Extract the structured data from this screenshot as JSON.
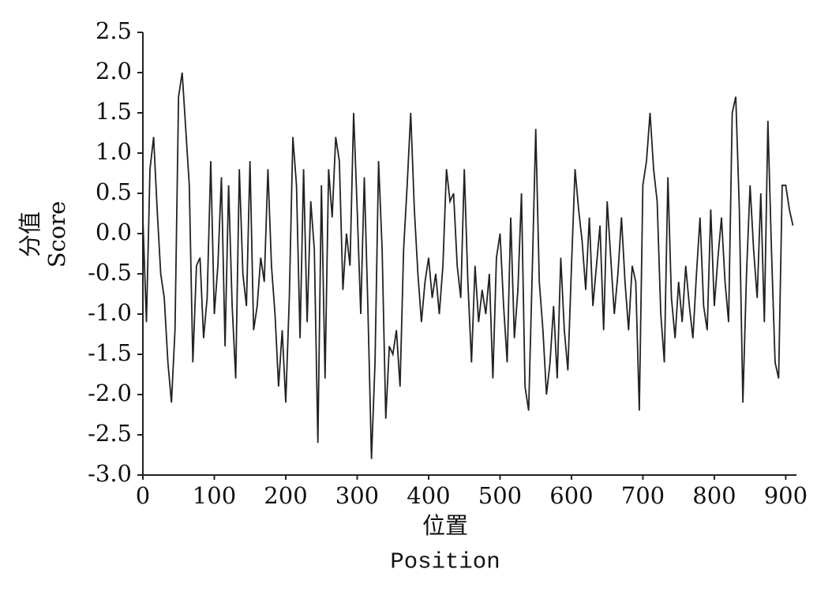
{
  "chart_data": {
    "type": "line",
    "y_label": [
      "分值",
      "Score"
    ],
    "x_label": [
      "位置",
      "Position"
    ],
    "xlim": [
      0,
      915
    ],
    "xticks": [
      0,
      100,
      200,
      300,
      400,
      500,
      600,
      700,
      800,
      900
    ],
    "ylim": [
      -3,
      2.5
    ],
    "yticks": [
      {
        "value": -3,
        "label": "-3.0"
      },
      -2.5,
      {
        "value": -2,
        "label": "-2.0"
      },
      -1.5,
      {
        "value": -1,
        "label": "-1.0"
      },
      -0.5,
      {
        "value": 0,
        "label": "0.0"
      },
      0.5,
      {
        "value": 1,
        "label": "1.0"
      },
      1.5,
      {
        "value": 2,
        "label": "2.0"
      },
      2.5
    ],
    "series": [
      {
        "name": "Score",
        "color": "#222222",
        "x": [
          0,
          5,
          10,
          15,
          20,
          25,
          30,
          35,
          40,
          45,
          50,
          55,
          60,
          65,
          70,
          75,
          80,
          85,
          90,
          95,
          100,
          105,
          110,
          115,
          120,
          125,
          130,
          135,
          140,
          145,
          150,
          155,
          160,
          165,
          170,
          175,
          180,
          185,
          190,
          195,
          200,
          205,
          210,
          215,
          220,
          225,
          230,
          235,
          240,
          245,
          250,
          255,
          260,
          265,
          270,
          275,
          280,
          285,
          290,
          295,
          300,
          305,
          310,
          315,
          320,
          325,
          330,
          335,
          340,
          345,
          350,
          355,
          360,
          365,
          370,
          375,
          380,
          385,
          390,
          395,
          400,
          405,
          410,
          415,
          420,
          425,
          430,
          435,
          440,
          445,
          450,
          455,
          460,
          465,
          470,
          475,
          480,
          485,
          490,
          495,
          500,
          505,
          510,
          515,
          520,
          525,
          530,
          535,
          540,
          545,
          550,
          555,
          560,
          565,
          570,
          575,
          580,
          585,
          590,
          595,
          600,
          605,
          610,
          615,
          620,
          625,
          630,
          635,
          640,
          645,
          650,
          655,
          660,
          665,
          670,
          675,
          680,
          685,
          690,
          695,
          700,
          705,
          710,
          715,
          720,
          725,
          730,
          735,
          740,
          745,
          750,
          755,
          760,
          765,
          770,
          775,
          780,
          785,
          790,
          795,
          800,
          805,
          810,
          815,
          820,
          825,
          830,
          835,
          840,
          845,
          850,
          855,
          860,
          865,
          870,
          875,
          880,
          885,
          890,
          895,
          900,
          905,
          910
        ],
        "values": [
          0.2,
          -1.1,
          0.8,
          1.2,
          0.3,
          -0.5,
          -0.8,
          -1.6,
          -2.1,
          -1.2,
          1.7,
          2.0,
          1.3,
          0.6,
          -1.6,
          -0.4,
          -0.3,
          -1.3,
          -0.8,
          0.9,
          -1.0,
          -0.4,
          0.7,
          -1.4,
          0.6,
          -0.9,
          -1.8,
          0.8,
          -0.5,
          -0.9,
          0.9,
          -1.2,
          -0.9,
          -0.3,
          -0.6,
          0.8,
          -0.4,
          -1.0,
          -1.9,
          -1.2,
          -2.1,
          -0.8,
          1.2,
          0.6,
          -1.3,
          0.8,
          -1.1,
          0.4,
          -0.2,
          -2.6,
          0.6,
          -1.8,
          0.8,
          0.2,
          1.2,
          0.9,
          -0.7,
          0.0,
          -0.4,
          1.5,
          0.3,
          -1.0,
          0.7,
          -0.9,
          -2.8,
          -1.6,
          0.9,
          -0.2,
          -2.3,
          -1.4,
          -1.5,
          -1.2,
          -1.9,
          -0.2,
          0.6,
          1.5,
          0.3,
          -0.5,
          -1.1,
          -0.6,
          -0.3,
          -0.8,
          -0.5,
          -1.0,
          -0.4,
          0.8,
          0.4,
          0.5,
          -0.4,
          -0.8,
          0.8,
          -0.6,
          -1.6,
          -0.4,
          -1.1,
          -0.7,
          -1.0,
          -0.5,
          -1.8,
          -0.3,
          0.0,
          -0.9,
          -1.6,
          0.2,
          -1.3,
          -0.7,
          0.5,
          -1.9,
          -2.2,
          -0.5,
          1.3,
          -0.6,
          -1.2,
          -2.0,
          -1.6,
          -0.9,
          -1.8,
          -0.3,
          -1.2,
          -1.7,
          -0.4,
          0.8,
          0.3,
          -0.1,
          -0.7,
          0.2,
          -0.9,
          -0.4,
          0.1,
          -1.2,
          0.4,
          -0.3,
          -1.0,
          -0.5,
          0.2,
          -0.6,
          -1.2,
          -0.4,
          -0.6,
          -2.2,
          0.6,
          0.9,
          1.5,
          0.8,
          0.4,
          -1.0,
          -1.6,
          0.7,
          -0.8,
          -1.3,
          -0.6,
          -1.1,
          -0.4,
          -0.9,
          -1.3,
          -0.5,
          0.2,
          -0.9,
          -1.2,
          0.3,
          -0.9,
          -0.3,
          0.2,
          -0.6,
          -1.1,
          1.5,
          1.7,
          0.3,
          -2.1,
          -0.5,
          0.6,
          -0.2,
          -0.8,
          0.5,
          -1.1,
          1.4,
          -0.2,
          -1.6,
          -1.8,
          0.6,
          0.6,
          0.3,
          0.1
        ]
      }
    ]
  }
}
